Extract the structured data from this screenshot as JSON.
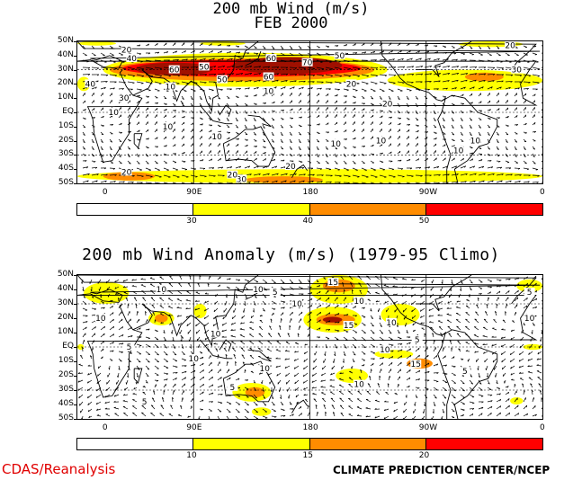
{
  "titles": {
    "top_line1": "200 mb Wind (m/s)",
    "top_line2": "FEB 2000",
    "bottom": "200 mb Wind Anomaly (m/s) (1979-95 Climo)"
  },
  "footer": {
    "left": "CDAS/Reanalysis",
    "right": "CLIMATE PREDICTION CENTER/NCEP"
  },
  "colors": {
    "white": "#ffffff",
    "yellow": "#ffff00",
    "orange": "#ff8c00",
    "red": "#ff0000",
    "darkred": "#a01000",
    "coast": "#000000",
    "footer_red": "#e00000"
  },
  "chart_data": [
    {
      "type": "heatmap",
      "title": "200 mb Wind (m/s) FEB 2000",
      "lat_ticks": [
        "50N",
        "40N",
        "30N",
        "20N",
        "10N",
        "EQ",
        "10S",
        "20S",
        "30S",
        "40S",
        "50S"
      ],
      "lon_ticks": [
        "0",
        "90E",
        "180",
        "90W",
        "0"
      ],
      "ylim": [
        -50,
        50
      ],
      "xlim": [
        0,
        360
      ],
      "colorbar": {
        "bins": [
          "white",
          "yellow",
          "orange",
          "red"
        ],
        "labels": [
          "30",
          "40",
          "50"
        ]
      },
      "contour_labels": [
        {
          "text": "20",
          "lon": 38,
          "lat": 44
        },
        {
          "text": "40",
          "lon": 42,
          "lat": 38
        },
        {
          "text": "60",
          "lon": 75,
          "lat": 30
        },
        {
          "text": "50",
          "lon": 98,
          "lat": 32
        },
        {
          "text": "60",
          "lon": 150,
          "lat": 38
        },
        {
          "text": "60",
          "lon": 148,
          "lat": 25
        },
        {
          "text": "70",
          "lon": 178,
          "lat": 35
        },
        {
          "text": "50",
          "lon": 203,
          "lat": 40
        },
        {
          "text": "50",
          "lon": 112,
          "lat": 23
        },
        {
          "text": "40",
          "lon": 10,
          "lat": 20
        },
        {
          "text": "30",
          "lon": 36,
          "lat": 10
        },
        {
          "text": "10",
          "lon": 72,
          "lat": 18
        },
        {
          "text": "10",
          "lon": 148,
          "lat": 15
        },
        {
          "text": "20",
          "lon": 212,
          "lat": 20
        },
        {
          "text": "10",
          "lon": 28,
          "lat": 0
        },
        {
          "text": "20",
          "lon": 240,
          "lat": 6
        },
        {
          "text": "10",
          "lon": 108,
          "lat": -17
        },
        {
          "text": "10",
          "lon": 200,
          "lat": -22
        },
        {
          "text": "20",
          "lon": 165,
          "lat": -38
        },
        {
          "text": "30",
          "lon": 127,
          "lat": -47
        },
        {
          "text": "20",
          "lon": 120,
          "lat": -44
        },
        {
          "text": "10",
          "lon": 295,
          "lat": -27
        },
        {
          "text": "10",
          "lon": 308,
          "lat": -20
        },
        {
          "text": "10",
          "lon": 70,
          "lat": -10
        },
        {
          "text": "20",
          "lon": 38,
          "lat": -42
        },
        {
          "text": "30",
          "lon": 340,
          "lat": 30
        },
        {
          "text": "20",
          "lon": 335,
          "lat": 47
        },
        {
          "text": "10",
          "lon": 235,
          "lat": -20
        }
      ]
    },
    {
      "type": "heatmap",
      "title": "200 mb Wind Anomaly (m/s) (1979-95 Climo)",
      "lat_ticks": [
        "50N",
        "40N",
        "30N",
        "20N",
        "10N",
        "EQ",
        "10S",
        "20S",
        "30S",
        "40S",
        "50S"
      ],
      "lon_ticks": [
        "0",
        "90E",
        "180",
        "90W",
        "0"
      ],
      "ylim": [
        -50,
        50
      ],
      "xlim": [
        0,
        360
      ],
      "colorbar": {
        "bins": [
          "white",
          "yellow",
          "orange",
          "red"
        ],
        "labels": [
          "10",
          "15",
          "20"
        ]
      },
      "contour_labels": [
        {
          "text": "10",
          "lon": 65,
          "lat": 40
        },
        {
          "text": "10",
          "lon": 18,
          "lat": 20
        },
        {
          "text": "5",
          "lon": 40,
          "lat": 0
        },
        {
          "text": "10",
          "lon": 90,
          "lat": -8
        },
        {
          "text": "5",
          "lon": 52,
          "lat": -38
        },
        {
          "text": "10",
          "lon": 140,
          "lat": 40
        },
        {
          "text": "15",
          "lon": 198,
          "lat": 45
        },
        {
          "text": "10",
          "lon": 218,
          "lat": 32
        },
        {
          "text": "15",
          "lon": 210,
          "lat": 15
        },
        {
          "text": "10",
          "lon": 243,
          "lat": 17
        },
        {
          "text": "10",
          "lon": 238,
          "lat": -2
        },
        {
          "text": "5",
          "lon": 263,
          "lat": 5
        },
        {
          "text": "15",
          "lon": 262,
          "lat": -12
        },
        {
          "text": "10",
          "lon": 218,
          "lat": -26
        },
        {
          "text": "5",
          "lon": 300,
          "lat": -17
        },
        {
          "text": "10",
          "lon": 350,
          "lat": 20
        },
        {
          "text": "5",
          "lon": 350,
          "lat": 38
        },
        {
          "text": "5",
          "lon": 120,
          "lat": -28
        },
        {
          "text": "10",
          "lon": 107,
          "lat": 9
        },
        {
          "text": "5",
          "lon": 153,
          "lat": 38
        },
        {
          "text": "10",
          "lon": 170,
          "lat": 30
        },
        {
          "text": "10",
          "lon": 145,
          "lat": -15
        }
      ]
    }
  ]
}
